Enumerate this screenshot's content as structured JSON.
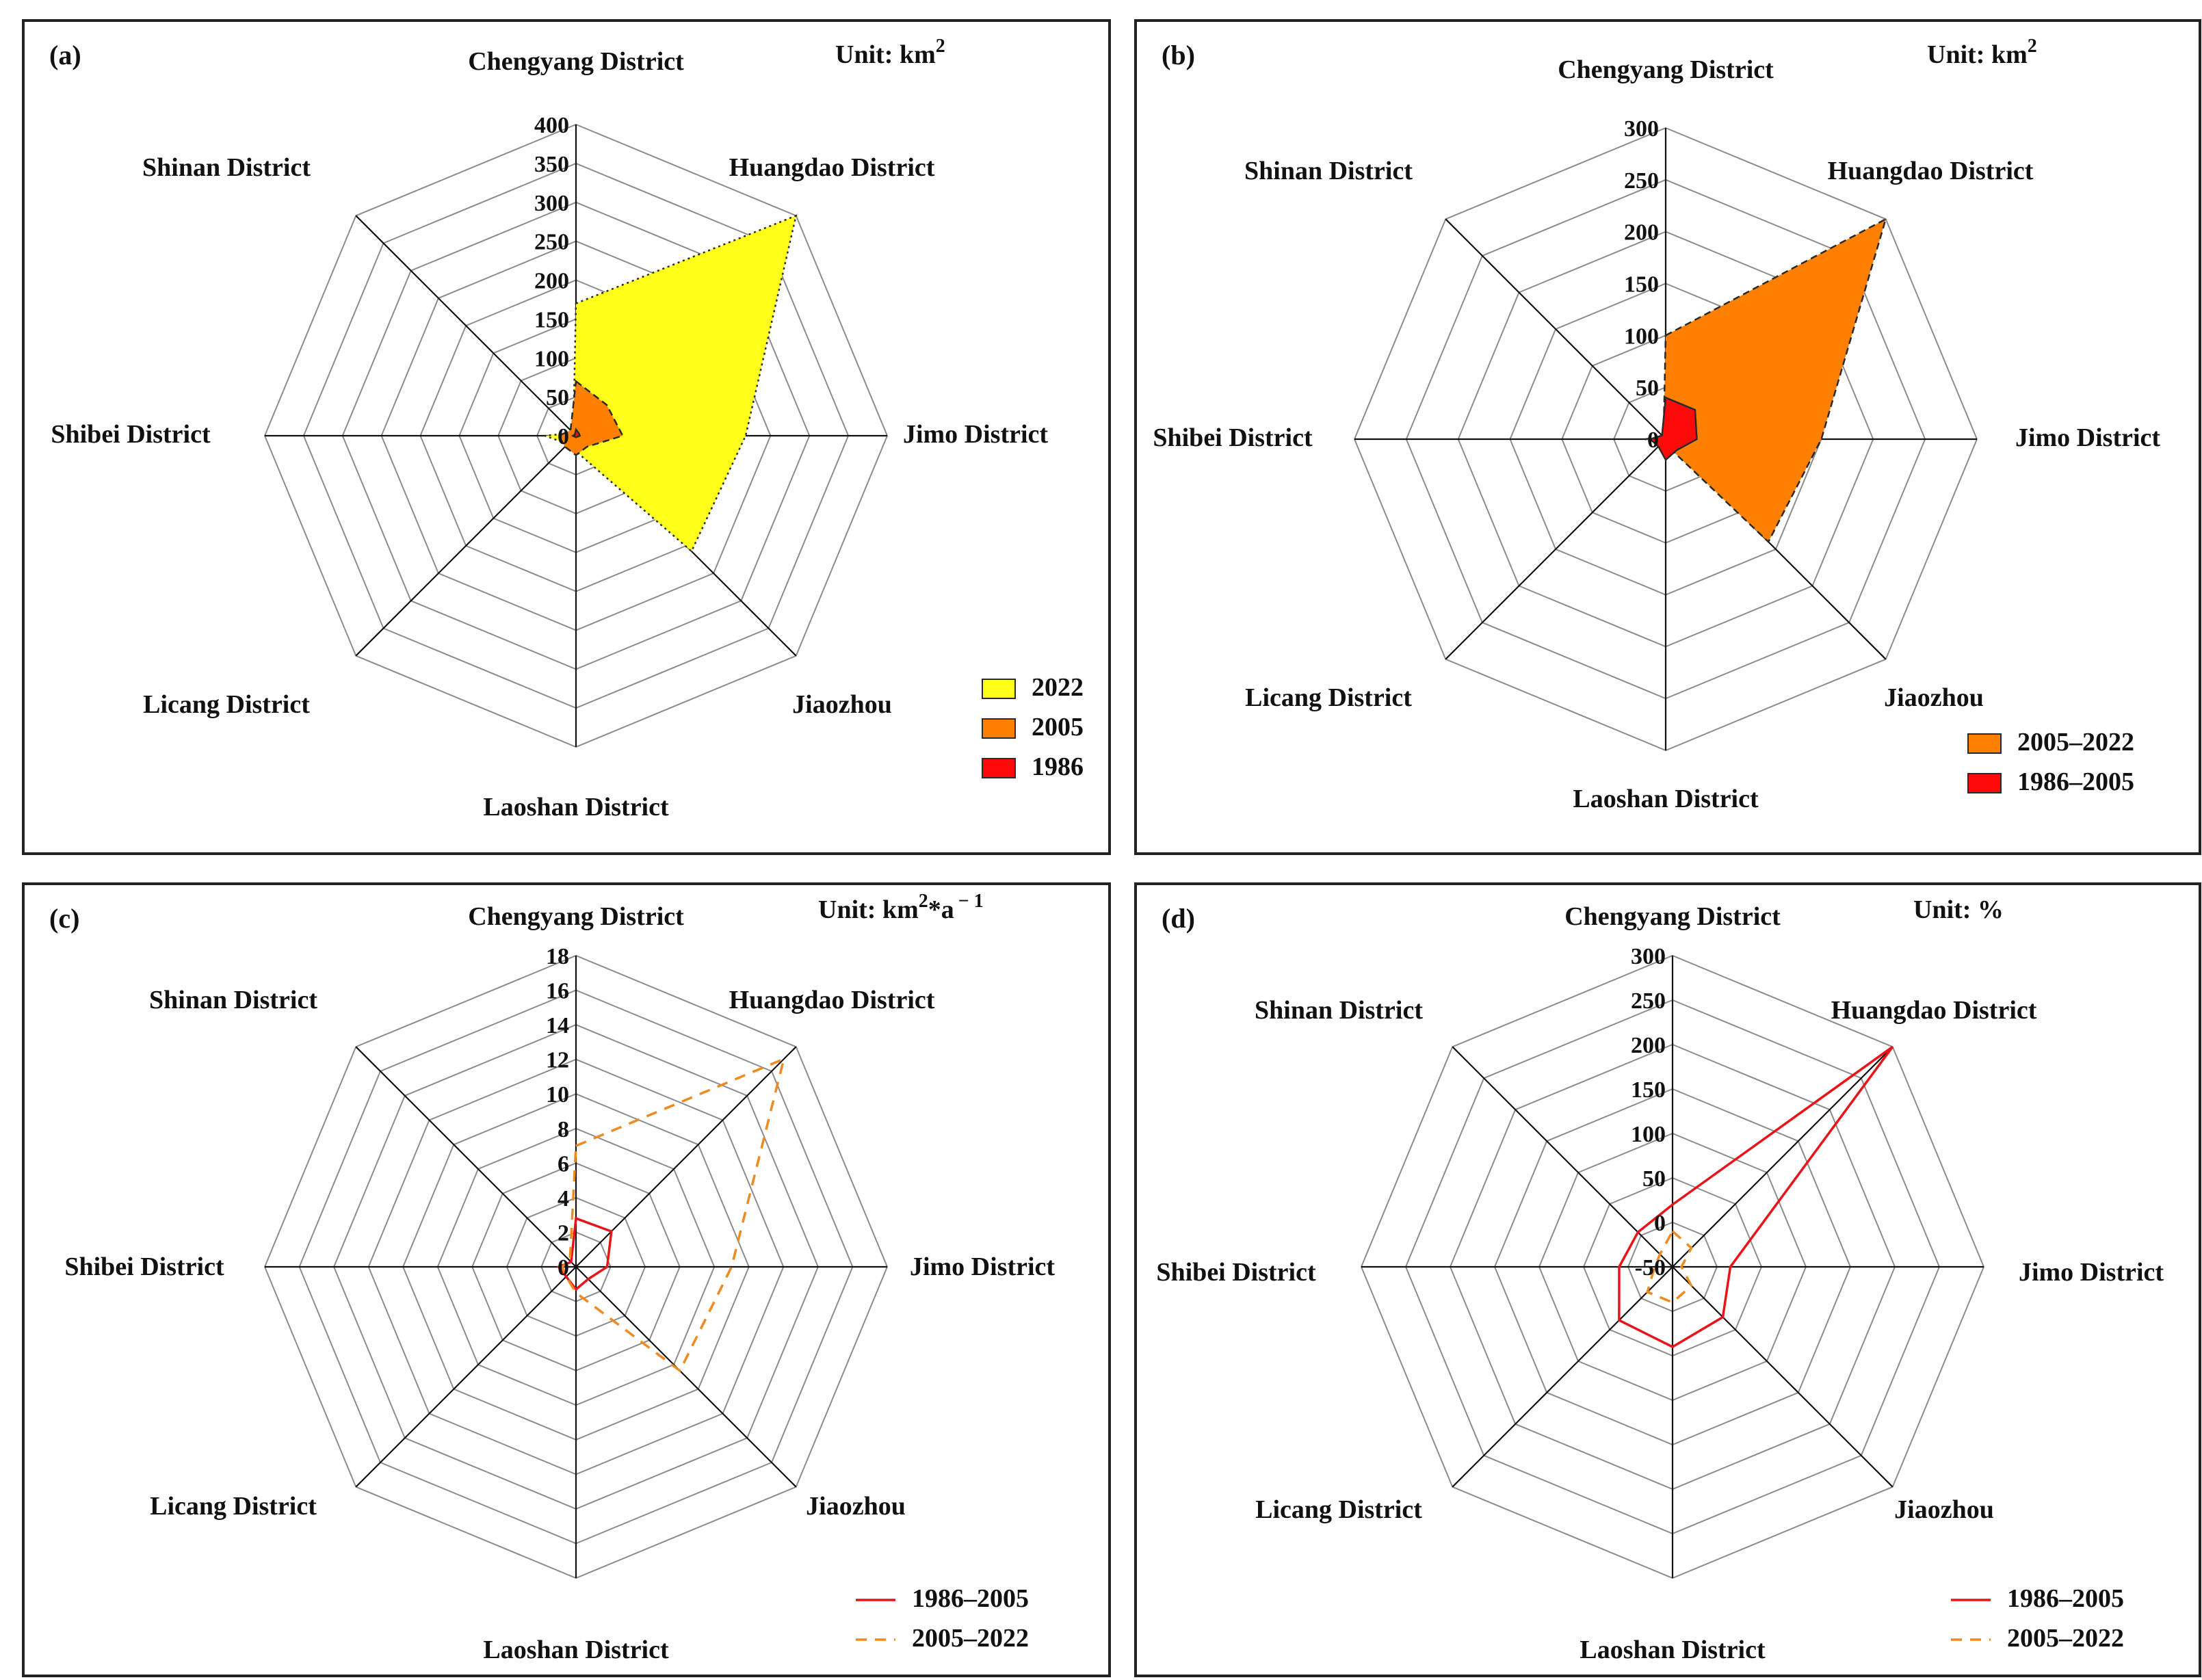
{
  "colors": {
    "yellow": "#ffff1a",
    "orange": "#ff8000",
    "red": "#ff0a0a",
    "line_red": "#e8141a",
    "line_orange": "#f08a1e",
    "grid": "#8c8c8c",
    "axis": "#111111"
  },
  "chart_data": [
    {
      "panel": "(a)",
      "type": "radar-area",
      "unit_prefix": "Unit:",
      "unit": "km",
      "unit_sup": "2",
      "axes": [
        "Chengyang District",
        "Huangdao District",
        "Jimo District",
        "Jiaozhou",
        "Laoshan District",
        "Licang District",
        "Shibei District",
        "Shinan District"
      ],
      "ticks": [
        "0",
        "50",
        "100",
        "150",
        "200",
        "250",
        "300",
        "350",
        "400"
      ],
      "rmax": 400,
      "series": [
        {
          "name": "2022",
          "color": "#ffff1a",
          "dash": "dotted",
          "values": [
            170,
            400,
            218,
            210,
            20,
            15,
            40,
            5
          ]
        },
        {
          "name": "2005",
          "color": "#ff8000",
          "dash": "dashed",
          "values": [
            70,
            56,
            60,
            20,
            25,
            20,
            22,
            10
          ]
        },
        {
          "name": "1986",
          "color": "#ff0a0a",
          "dash": "solid",
          "values": [
            8,
            5,
            5,
            2,
            2,
            2,
            4,
            2
          ]
        }
      ]
    },
    {
      "panel": "(b)",
      "type": "radar-area",
      "unit_prefix": "Unit:",
      "unit": "km",
      "unit_sup": "2",
      "axes": [
        "Chengyang District",
        "Huangdao District",
        "Jimo District",
        "Jiaozhou",
        "Laoshan District",
        "Licang District",
        "Shibei District",
        "Shinan District"
      ],
      "ticks": [
        "0",
        "50",
        "100",
        "150",
        "200",
        "250",
        "300"
      ],
      "rmax": 300,
      "series": [
        {
          "name": "2005–2022",
          "color": "#ff8000",
          "dash": "dashed",
          "values": [
            100,
            300,
            150,
            140,
            5,
            5,
            20,
            3
          ]
        },
        {
          "name": "1986–2005",
          "color": "#ff0a0a",
          "dash": "solid",
          "values": [
            40,
            40,
            30,
            15,
            20,
            10,
            15,
            5
          ]
        }
      ]
    },
    {
      "panel": "(c)",
      "type": "radar-line",
      "unit_prefix": "Unit:",
      "unit": "km",
      "unit_sup": "2",
      "unit_suffix": "*a",
      "unit_exp": "− 1",
      "axes": [
        "Chengyang District",
        "Huangdao District",
        "Jimo District",
        "Jiaozhou",
        "Laoshan District",
        "Licang District",
        "Shibei District",
        "Shinan District"
      ],
      "ticks": [
        "0",
        "2",
        "4",
        "6",
        "8",
        "10",
        "12",
        "14",
        "16",
        "18"
      ],
      "rmax": 18,
      "series": [
        {
          "name": "1986–2005",
          "color": "#e8141a",
          "dash": "solid",
          "values": [
            2.8,
            2.9,
            1.8,
            1.0,
            1.3,
            0.8,
            1.0,
            0.4
          ]
        },
        {
          "name": "2005–2022",
          "color": "#f08a1e",
          "dash": "dashed",
          "values": [
            7.0,
            17.0,
            9.0,
            8.5,
            1.5,
            0.8,
            0.8,
            0.5
          ]
        }
      ]
    },
    {
      "panel": "(d)",
      "type": "radar-line",
      "unit_prefix": "Unit:",
      "unit": "%",
      "axes": [
        "Chengyang District",
        "Huangdao District",
        "Jimo District",
        "Jiaozhou",
        "Laoshan District",
        "Licang District",
        "Shibei District",
        "Shinan District"
      ],
      "ticks": [
        "-50",
        "0",
        "50",
        "100",
        "150",
        "200",
        "250",
        "300"
      ],
      "rmin": -50,
      "rmax": 300,
      "series": [
        {
          "name": "1986–2005",
          "color": "#e8141a",
          "dash": "solid",
          "values": [
            20,
            300,
            15,
            30,
            40,
            35,
            10,
            5
          ]
        },
        {
          "name": "2005–2022",
          "color": "#f08a1e",
          "dash": "dashed",
          "values": [
            -10,
            -20,
            -40,
            -20,
            -10,
            -10,
            -30,
            -30
          ]
        }
      ]
    }
  ]
}
